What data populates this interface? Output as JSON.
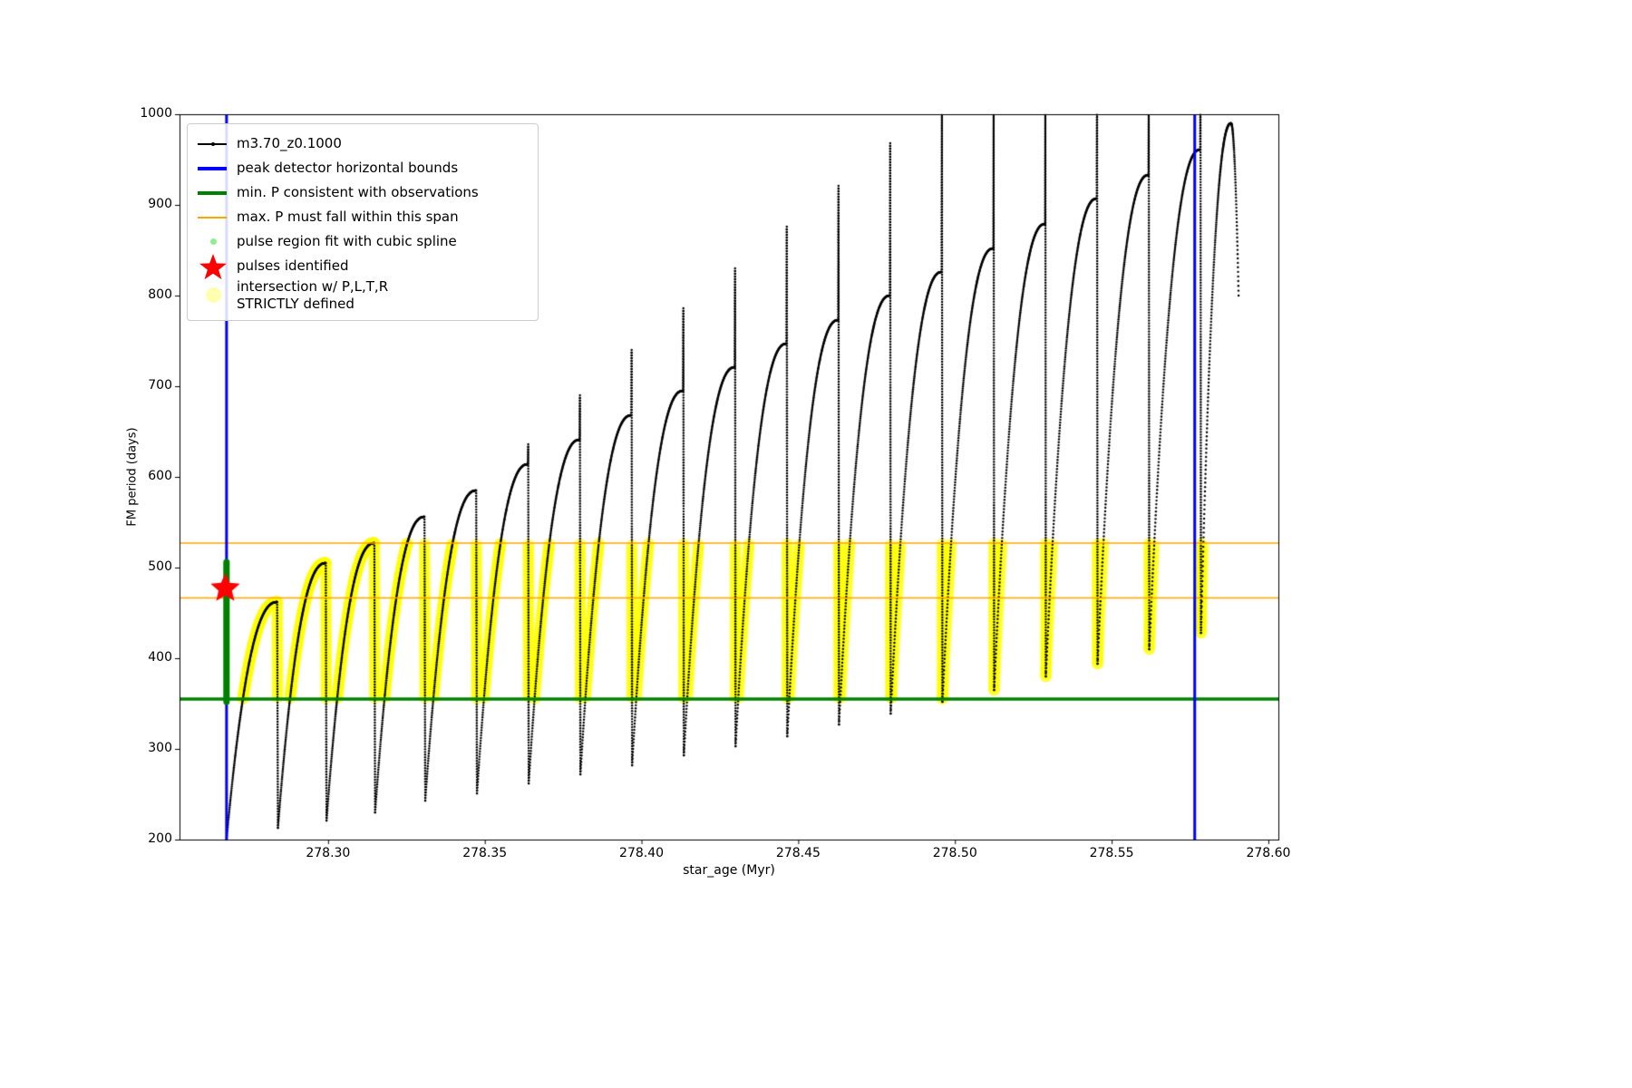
{
  "page": {
    "background": "#ffffff"
  },
  "chart_data": {
    "type": "line",
    "title": "",
    "xlabel": "star_age (Myr)",
    "ylabel": "FM period (days)",
    "xlim": [
      278.2526,
      278.6032
    ],
    "ylim": [
      200,
      1000
    ],
    "xticks": [
      278.3,
      278.35,
      278.4,
      278.45,
      278.5,
      278.55,
      278.6
    ],
    "xtick_labels": [
      "278.30",
      "278.35",
      "278.40",
      "278.45",
      "278.50",
      "278.55",
      "278.60"
    ],
    "yticks": [
      200,
      300,
      400,
      500,
      600,
      700,
      800,
      900,
      1000
    ],
    "ytick_labels": [
      "200",
      "300",
      "400",
      "500",
      "600",
      "700",
      "800",
      "900",
      "1000"
    ],
    "grid": false,
    "series": [
      {
        "name": "m3.70_z0.1000",
        "color": "#000000",
        "style": "line-with-dots"
      }
    ],
    "peak_detector_bounds": {
      "x": [
        278.2676,
        278.5765
      ],
      "color": "#0000ff",
      "linewidth": 3
    },
    "min_period_line": {
      "y": 355,
      "color": "#008000",
      "linewidth": 3.5
    },
    "max_period_span": {
      "y": [
        466.5,
        527
      ],
      "color": "#ffa500",
      "linewidth": 1.6
    },
    "intersection_band": {
      "y_min": 355,
      "y_max": 527,
      "color": "#ffff00"
    },
    "spline_region": {
      "x": 278.2676,
      "y_min": 352,
      "y_max": 507,
      "color": "#008000"
    },
    "pulses_identified": [
      {
        "x": 278.2672,
        "y": 477
      }
    ],
    "pulse_cycles": [
      {
        "x0": 278.2676,
        "min": 200,
        "peak": 462,
        "needle": 0
      },
      {
        "x0": 278.284,
        "min": 213,
        "peak": 505,
        "needle": 0
      },
      {
        "x0": 278.2995,
        "min": 221,
        "peak": 527,
        "needle": 0
      },
      {
        "x0": 278.315,
        "min": 230,
        "peak": 556,
        "needle": 0
      },
      {
        "x0": 278.331,
        "min": 243,
        "peak": 585,
        "needle": 0
      },
      {
        "x0": 278.3475,
        "min": 251,
        "peak": 614,
        "needle": 636
      },
      {
        "x0": 278.364,
        "min": 262,
        "peak": 641,
        "needle": 690
      },
      {
        "x0": 278.3805,
        "min": 272,
        "peak": 668,
        "needle": 740
      },
      {
        "x0": 278.397,
        "min": 282,
        "peak": 695,
        "needle": 786
      },
      {
        "x0": 278.4135,
        "min": 293,
        "peak": 721,
        "needle": 830
      },
      {
        "x0": 278.43,
        "min": 303,
        "peak": 747,
        "needle": 876
      },
      {
        "x0": 278.4465,
        "min": 314,
        "peak": 773,
        "needle": 921
      },
      {
        "x0": 278.463,
        "min": 327,
        "peak": 800,
        "needle": 968
      },
      {
        "x0": 278.4795,
        "min": 339,
        "peak": 826,
        "needle": 1005
      },
      {
        "x0": 278.496,
        "min": 352,
        "peak": 852,
        "needle": 1020
      },
      {
        "x0": 278.5125,
        "min": 365,
        "peak": 879,
        "needle": 1035
      },
      {
        "x0": 278.529,
        "min": 380,
        "peak": 907,
        "needle": 1050
      },
      {
        "x0": 278.5455,
        "min": 394,
        "peak": 933,
        "needle": 1060
      },
      {
        "x0": 278.562,
        "min": 410,
        "peak": 961,
        "needle": 1070
      },
      {
        "x0": 278.5785,
        "min": 428,
        "peak": 990,
        "needle": 0,
        "end_y": 800
      }
    ],
    "x_end": 278.5905
  },
  "legend": {
    "entries": [
      {
        "label": "m3.70_z0.1000",
        "marker": "line-dot",
        "color": "#000000"
      },
      {
        "label": "peak detector horizontal bounds",
        "marker": "thick-line",
        "color": "#0000ff"
      },
      {
        "label": "min. P consistent with observations",
        "marker": "thick-line",
        "color": "#008000"
      },
      {
        "label": "max. P must fall within this span",
        "marker": "line",
        "color": "#ffa500"
      },
      {
        "label": "pulse region fit with cubic spline",
        "marker": "small-dot",
        "color": "#90ee90"
      },
      {
        "label": "pulses identified",
        "marker": "star",
        "color": "#ff0000"
      },
      {
        "label": "intersection w/ P,L,T,R\nSTRICTLY defined",
        "marker": "large-dot",
        "color": "rgba(255,255,0,0.3)"
      }
    ]
  }
}
